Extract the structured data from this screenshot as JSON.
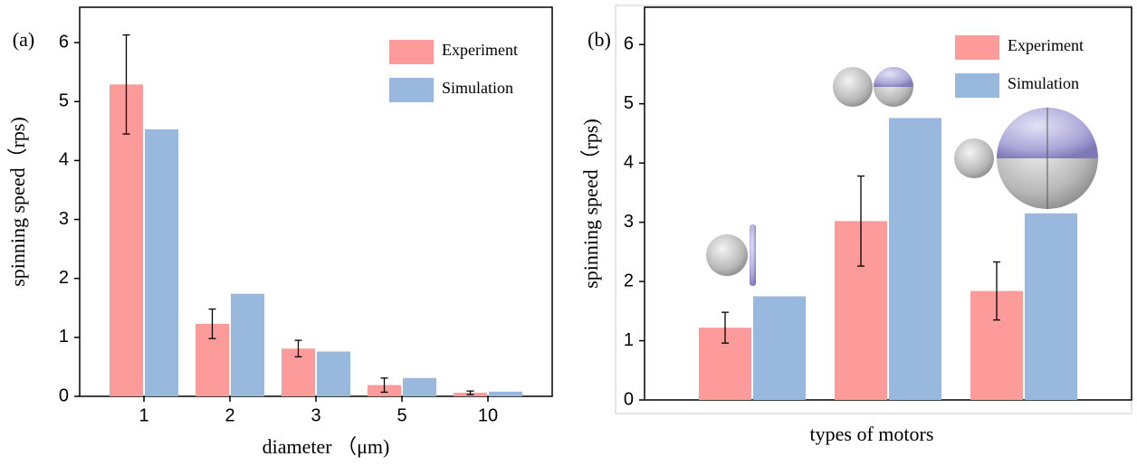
{
  "chart_data": [
    {
      "type": "bar",
      "panel_label": "(a)",
      "y_label": "spinning speed（rps)",
      "x_label": "diameter （μm)",
      "categories": [
        "1",
        "2",
        "3",
        "5",
        "10"
      ],
      "series": [
        {
          "name": "Experiment",
          "color": "#fd9a9a",
          "values": [
            5.29,
            1.23,
            0.81,
            0.19,
            0.06
          ],
          "errors": [
            0.84,
            0.25,
            0.14,
            0.12,
            0.03
          ]
        },
        {
          "name": "Simulation",
          "color": "#98b9dd",
          "values": [
            4.53,
            1.74,
            0.76,
            0.31,
            0.08
          ]
        }
      ],
      "ylim": [
        0,
        6.6
      ],
      "yticks": [
        0,
        1,
        2,
        3,
        4,
        5,
        6
      ],
      "legend": "upper right"
    },
    {
      "type": "bar",
      "panel_label": "(b)",
      "y_label": "spinning speed（rps)",
      "x_label": "types of motors",
      "categories": [
        null,
        null,
        null
      ],
      "series": [
        {
          "name": "Experiment",
          "color": "#fd9a9a",
          "values": [
            1.22,
            3.02,
            1.84
          ],
          "errors": [
            0.26,
            0.76,
            0.49
          ]
        },
        {
          "name": "Simulation",
          "color": "#98b9dd",
          "values": [
            1.75,
            4.76,
            3.15
          ]
        }
      ],
      "ylim": [
        0,
        6.63
      ],
      "yticks": [
        0,
        1,
        2,
        3,
        4,
        5,
        6
      ],
      "legend": "upper right"
    }
  ]
}
